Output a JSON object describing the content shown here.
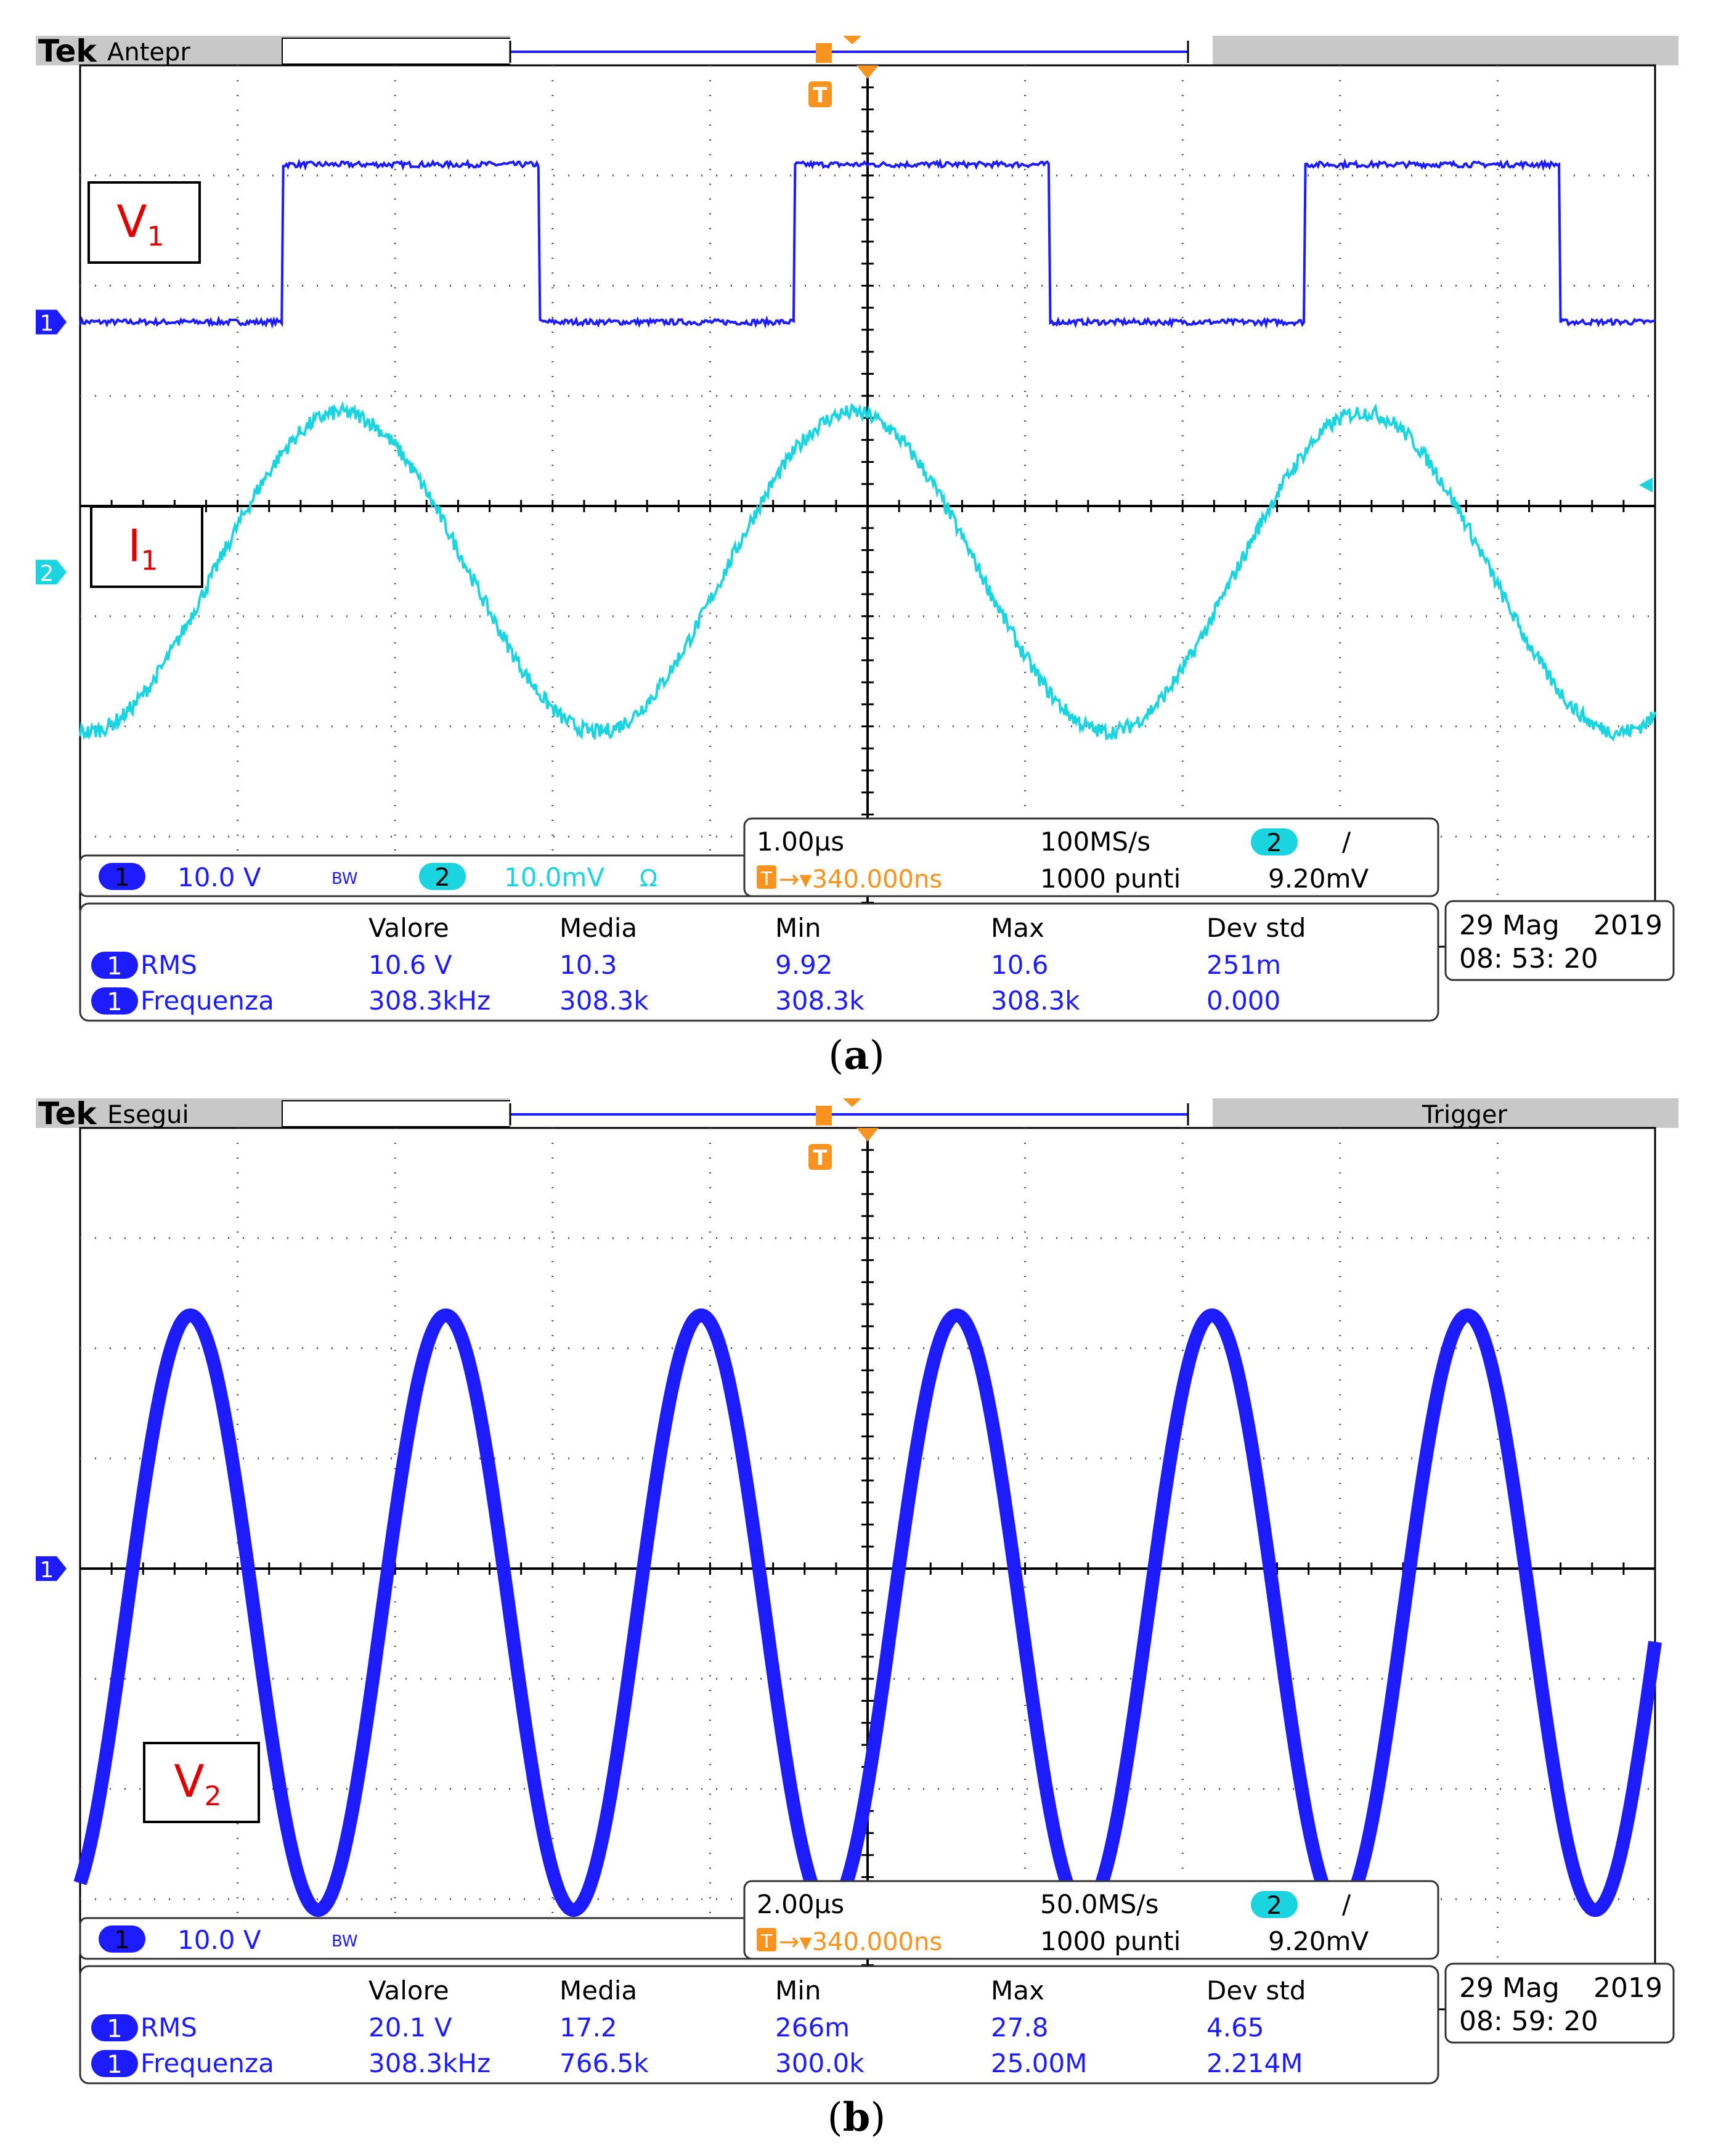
{
  "panels": [
    {
      "caption_letter": "a",
      "brand": "Tek",
      "mode": "Antepr",
      "status_right": "",
      "labels": [
        {
          "main": "V",
          "sub": "1"
        },
        {
          "main": "I",
          "sub": "1"
        }
      ],
      "channel_markers": [
        "1",
        "2"
      ],
      "ch_info": {
        "ch1_num": "1",
        "ch1_scale": "10.0 V",
        "bw": "BW",
        "ch2_num": "2",
        "ch2_scale": "10.0mV",
        "ch2_unit": "Ω"
      },
      "timebase": {
        "time_div": "1.00µs",
        "sample_rate": "100MS/s",
        "trig_ch": "2",
        "slope": "/",
        "trig_pos": "340.000ns",
        "points": "1000 punti",
        "trig_level": "9.20mV"
      },
      "meas_headers": [
        "Valore",
        "Media",
        "Min",
        "Max",
        "Dev std"
      ],
      "measurements": [
        {
          "ch": "1",
          "name": "RMS",
          "values": [
            "10.6 V",
            "10.3",
            "9.92",
            "10.6",
            "251m"
          ]
        },
        {
          "ch": "1",
          "name": "Frequenza",
          "values": [
            "308.3kHz",
            "308.3k",
            "308.3k",
            "308.3k",
            "0.000"
          ]
        }
      ],
      "date": "29 Mag",
      "year": "2019",
      "time": "08: 53: 20"
    },
    {
      "caption_letter": "b",
      "brand": "Tek",
      "mode": "Esegui",
      "status_right": "Trigger",
      "labels": [
        {
          "main": "V",
          "sub": "2"
        }
      ],
      "channel_markers": [
        "1"
      ],
      "ch_info": {
        "ch1_num": "1",
        "ch1_scale": "10.0 V",
        "bw": "BW",
        "ch2_num": "",
        "ch2_scale": "",
        "ch2_unit": ""
      },
      "timebase": {
        "time_div": "2.00µs",
        "sample_rate": "50.0MS/s",
        "trig_ch": "2",
        "slope": "/",
        "trig_pos": "340.000ns",
        "points": "1000 punti",
        "trig_level": "9.20mV"
      },
      "meas_headers": [
        "Valore",
        "Media",
        "Min",
        "Max",
        "Dev std"
      ],
      "measurements": [
        {
          "ch": "1",
          "name": "RMS",
          "values": [
            "20.1 V",
            "17.2",
            "266m",
            "27.8",
            "4.65"
          ]
        },
        {
          "ch": "1",
          "name": "Frequenza",
          "values": [
            "308.3kHz",
            "766.5k",
            "300.0k",
            "25.00M",
            "2.214M"
          ]
        }
      ],
      "date": "29 Mag",
      "year": "2019",
      "time": "08: 59: 20"
    }
  ],
  "colors": {
    "ch1": "#1c1cff",
    "ch2": "#1ad4e0",
    "trigger": "#f7931e",
    "label_red": "#e00000"
  },
  "chart_data": [
    {
      "type": "line",
      "title": "",
      "x_unit_per_div": "1.00µs",
      "x_divisions": 10,
      "y_divisions": 8,
      "grid": true,
      "series": [
        {
          "name": "V1",
          "channel": "1",
          "waveform": "square",
          "frequency_hz": 308300,
          "rms_v": 10.6,
          "volts_per_div": 10.0,
          "low_div": 1.67,
          "high_div": 3.1,
          "rise_time_us": 0.29
        },
        {
          "name": "I1",
          "channel": "2",
          "waveform": "sine",
          "frequency_hz": 308300,
          "center_div": -0.6,
          "amplitude_div": 1.45,
          "peak_time_us": 0.66
        }
      ]
    },
    {
      "type": "line",
      "title": "",
      "x_unit_per_div": "2.00µs",
      "x_divisions": 10,
      "y_divisions": 8,
      "grid": true,
      "series": [
        {
          "name": "V2",
          "channel": "1",
          "waveform": "sine",
          "frequency_hz": 308300,
          "rms_v": 20.1,
          "volts_per_div": 10.0,
          "center_div": -0.4,
          "amplitude_div": 2.7,
          "first_peak_us": 1.4
        }
      ]
    }
  ]
}
